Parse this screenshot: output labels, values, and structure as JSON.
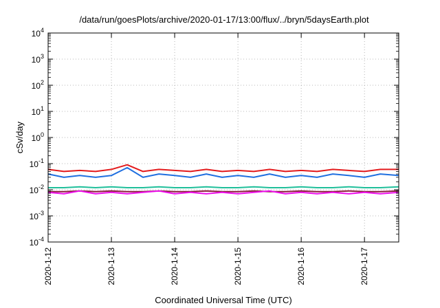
{
  "chart_data": {
    "type": "line",
    "title": "/data/run/goesPlots/archive/2020-01-17/13:00/flux/../bryn/5daysEarth.plot",
    "xlabel": "Coordinated Universal Time (UTC)",
    "ylabel": "cSv/day",
    "yscale": "log",
    "ylim": [
      0.0001,
      10000
    ],
    "y_ticks": [
      {
        "base": "10",
        "exp": "-4"
      },
      {
        "base": "10",
        "exp": "-3"
      },
      {
        "base": "10",
        "exp": "-2"
      },
      {
        "base": "10",
        "exp": "-1"
      },
      {
        "base": "10",
        "exp": "0"
      },
      {
        "base": "10",
        "exp": "1"
      },
      {
        "base": "10",
        "exp": "2"
      },
      {
        "base": "10",
        "exp": "3"
      },
      {
        "base": "10",
        "exp": "4"
      }
    ],
    "xlim": [
      "2020-01-12T00:00",
      "2020-01-17T13:00"
    ],
    "x_ticks": [
      "2020-1-12",
      "2020-1-13",
      "2020-1-14",
      "2020-1-15",
      "2020-1-16",
      "2020-1-17"
    ],
    "grid": true,
    "series_colors": {
      "red": "#e31a1c",
      "blue": "#1f6fe0",
      "teal": "#1fbf9a",
      "darkred": "#8b1a3a",
      "magenta": "#ee10ee"
    },
    "series": [
      {
        "color_key": "red",
        "typical": 0.055,
        "points": [
          [
            "2020-01-12T00:00",
            0.06
          ],
          [
            "2020-01-12T06:00",
            0.05
          ],
          [
            "2020-01-12T12:00",
            0.055
          ],
          [
            "2020-01-12T18:00",
            0.05
          ],
          [
            "2020-01-13T00:00",
            0.06
          ],
          [
            "2020-01-13T06:00",
            0.09
          ],
          [
            "2020-01-13T12:00",
            0.05
          ],
          [
            "2020-01-13T18:00",
            0.06
          ],
          [
            "2020-01-14T00:00",
            0.055
          ],
          [
            "2020-01-14T06:00",
            0.05
          ],
          [
            "2020-01-14T12:00",
            0.06
          ],
          [
            "2020-01-14T18:00",
            0.05
          ],
          [
            "2020-01-15T00:00",
            0.055
          ],
          [
            "2020-01-15T06:00",
            0.05
          ],
          [
            "2020-01-15T12:00",
            0.06
          ],
          [
            "2020-01-15T18:00",
            0.05
          ],
          [
            "2020-01-16T00:00",
            0.055
          ],
          [
            "2020-01-16T06:00",
            0.05
          ],
          [
            "2020-01-16T12:00",
            0.06
          ],
          [
            "2020-01-16T18:00",
            0.055
          ],
          [
            "2020-01-17T00:00",
            0.05
          ],
          [
            "2020-01-17T06:00",
            0.06
          ],
          [
            "2020-01-17T13:00",
            0.06
          ]
        ]
      },
      {
        "color_key": "blue",
        "typical": 0.035,
        "points": [
          [
            "2020-01-12T00:00",
            0.04
          ],
          [
            "2020-01-12T06:00",
            0.03
          ],
          [
            "2020-01-12T12:00",
            0.035
          ],
          [
            "2020-01-12T18:00",
            0.03
          ],
          [
            "2020-01-13T00:00",
            0.035
          ],
          [
            "2020-01-13T06:00",
            0.07
          ],
          [
            "2020-01-13T12:00",
            0.03
          ],
          [
            "2020-01-13T18:00",
            0.04
          ],
          [
            "2020-01-14T00:00",
            0.035
          ],
          [
            "2020-01-14T06:00",
            0.03
          ],
          [
            "2020-01-14T12:00",
            0.04
          ],
          [
            "2020-01-14T18:00",
            0.03
          ],
          [
            "2020-01-15T00:00",
            0.035
          ],
          [
            "2020-01-15T06:00",
            0.03
          ],
          [
            "2020-01-15T12:00",
            0.04
          ],
          [
            "2020-01-15T18:00",
            0.03
          ],
          [
            "2020-01-16T00:00",
            0.035
          ],
          [
            "2020-01-16T06:00",
            0.03
          ],
          [
            "2020-01-16T12:00",
            0.04
          ],
          [
            "2020-01-16T18:00",
            0.035
          ],
          [
            "2020-01-17T00:00",
            0.03
          ],
          [
            "2020-01-17T06:00",
            0.04
          ],
          [
            "2020-01-17T13:00",
            0.035
          ]
        ]
      },
      {
        "color_key": "teal",
        "typical": 0.012,
        "points": [
          [
            "2020-01-12T00:00",
            0.012
          ],
          [
            "2020-01-12T06:00",
            0.012
          ],
          [
            "2020-01-12T12:00",
            0.013
          ],
          [
            "2020-01-12T18:00",
            0.012
          ],
          [
            "2020-01-13T00:00",
            0.013
          ],
          [
            "2020-01-13T06:00",
            0.012
          ],
          [
            "2020-01-13T12:00",
            0.012
          ],
          [
            "2020-01-13T18:00",
            0.013
          ],
          [
            "2020-01-14T00:00",
            0.012
          ],
          [
            "2020-01-14T06:00",
            0.012
          ],
          [
            "2020-01-14T12:00",
            0.013
          ],
          [
            "2020-01-14T18:00",
            0.012
          ],
          [
            "2020-01-15T00:00",
            0.012
          ],
          [
            "2020-01-15T06:00",
            0.013
          ],
          [
            "2020-01-15T12:00",
            0.012
          ],
          [
            "2020-01-15T18:00",
            0.012
          ],
          [
            "2020-01-16T00:00",
            0.013
          ],
          [
            "2020-01-16T06:00",
            0.012
          ],
          [
            "2020-01-16T12:00",
            0.012
          ],
          [
            "2020-01-16T18:00",
            0.013
          ],
          [
            "2020-01-17T00:00",
            0.012
          ],
          [
            "2020-01-17T06:00",
            0.012
          ],
          [
            "2020-01-17T13:00",
            0.013
          ]
        ]
      },
      {
        "color_key": "darkred",
        "typical": 0.0085,
        "points": [
          [
            "2020-01-12T00:00",
            0.0085
          ],
          [
            "2020-01-12T06:00",
            0.0085
          ],
          [
            "2020-01-12T12:00",
            0.009
          ],
          [
            "2020-01-12T18:00",
            0.0085
          ],
          [
            "2020-01-13T00:00",
            0.009
          ],
          [
            "2020-01-13T06:00",
            0.0085
          ],
          [
            "2020-01-13T12:00",
            0.0085
          ],
          [
            "2020-01-13T18:00",
            0.009
          ],
          [
            "2020-01-14T00:00",
            0.0085
          ],
          [
            "2020-01-14T06:00",
            0.0085
          ],
          [
            "2020-01-14T12:00",
            0.009
          ],
          [
            "2020-01-14T18:00",
            0.0085
          ],
          [
            "2020-01-15T00:00",
            0.0085
          ],
          [
            "2020-01-15T06:00",
            0.009
          ],
          [
            "2020-01-15T12:00",
            0.0085
          ],
          [
            "2020-01-15T18:00",
            0.0085
          ],
          [
            "2020-01-16T00:00",
            0.009
          ],
          [
            "2020-01-16T06:00",
            0.0085
          ],
          [
            "2020-01-16T12:00",
            0.0085
          ],
          [
            "2020-01-16T18:00",
            0.009
          ],
          [
            "2020-01-17T00:00",
            0.0085
          ],
          [
            "2020-01-17T06:00",
            0.0085
          ],
          [
            "2020-01-17T13:00",
            0.009
          ]
        ]
      },
      {
        "color_key": "magenta",
        "typical": 0.0075,
        "points": [
          [
            "2020-01-12T00:00",
            0.008
          ],
          [
            "2020-01-12T06:00",
            0.007
          ],
          [
            "2020-01-12T12:00",
            0.009
          ],
          [
            "2020-01-12T18:00",
            0.007
          ],
          [
            "2020-01-13T00:00",
            0.008
          ],
          [
            "2020-01-13T06:00",
            0.007
          ],
          [
            "2020-01-13T12:00",
            0.008
          ],
          [
            "2020-01-13T18:00",
            0.009
          ],
          [
            "2020-01-14T00:00",
            0.007
          ],
          [
            "2020-01-14T06:00",
            0.008
          ],
          [
            "2020-01-14T12:00",
            0.007
          ],
          [
            "2020-01-14T18:00",
            0.008
          ],
          [
            "2020-01-15T00:00",
            0.007
          ],
          [
            "2020-01-15T06:00",
            0.008
          ],
          [
            "2020-01-15T12:00",
            0.009
          ],
          [
            "2020-01-15T18:00",
            0.007
          ],
          [
            "2020-01-16T00:00",
            0.008
          ],
          [
            "2020-01-16T06:00",
            0.007
          ],
          [
            "2020-01-16T12:00",
            0.008
          ],
          [
            "2020-01-16T18:00",
            0.007
          ],
          [
            "2020-01-17T00:00",
            0.008
          ],
          [
            "2020-01-17T06:00",
            0.007
          ],
          [
            "2020-01-17T13:00",
            0.008
          ]
        ]
      }
    ]
  }
}
